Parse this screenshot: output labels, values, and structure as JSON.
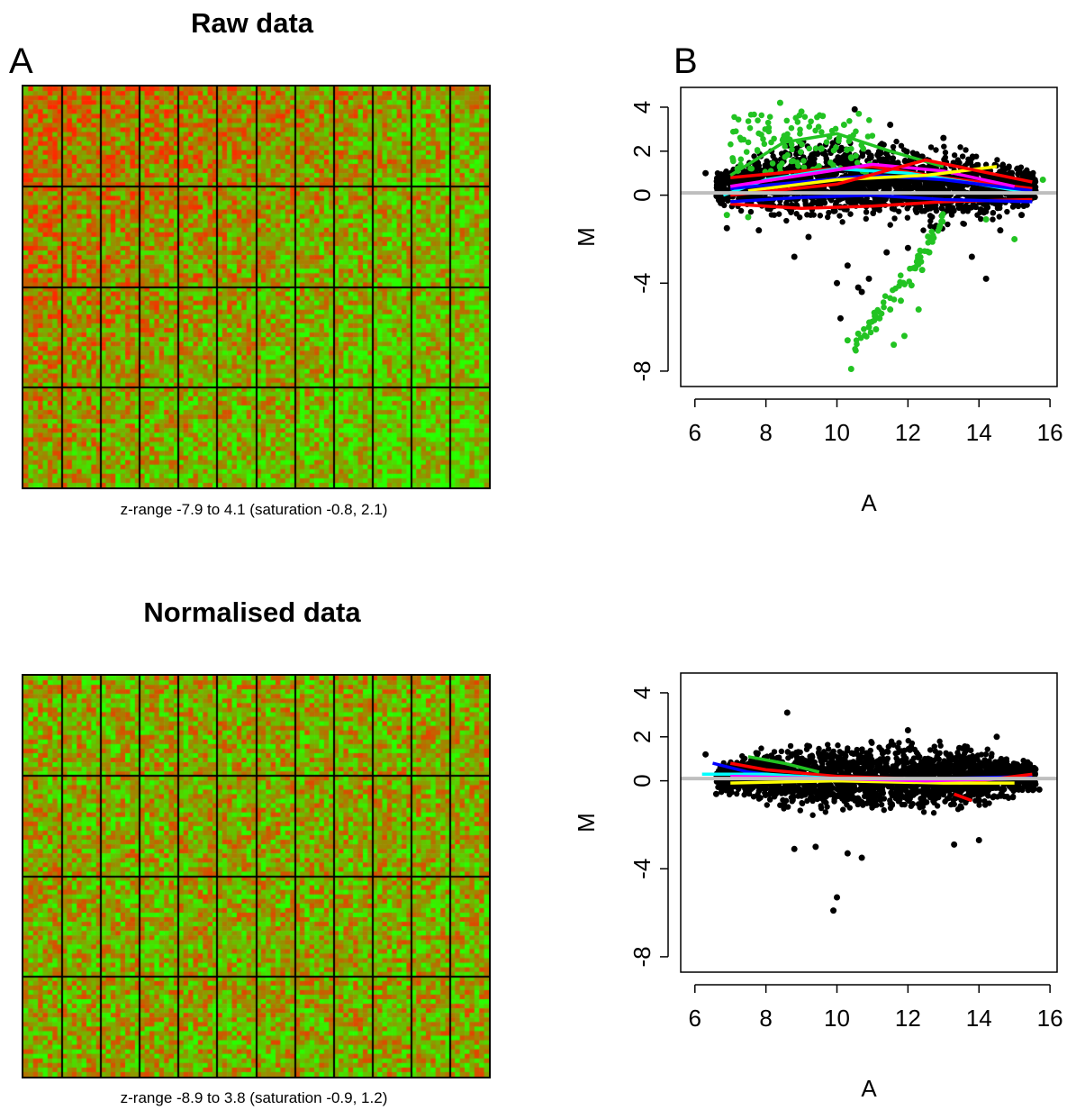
{
  "panel_labels": {
    "a": "A",
    "b": "B"
  },
  "colors": {
    "red": "#ff0000",
    "green": "#00ff00",
    "black": "#000000",
    "fit_line": "#bebebe"
  },
  "chart_data": [
    {
      "type": "heatmap",
      "title": "Raw data",
      "caption": "z-range -7.9 to 4.1 (saturation -0.8, 2.1)",
      "grid": {
        "block_rows": 4,
        "block_cols": 12
      },
      "z_range": [
        -7.9,
        4.1
      ],
      "saturation": [
        -0.8,
        2.1
      ],
      "colormap": [
        "green",
        "red"
      ]
    },
    {
      "type": "scatter",
      "title": "",
      "xlabel": "A",
      "ylabel": "M",
      "xlim": [
        5.6,
        16.2
      ],
      "ylim": [
        -8.7,
        4.9
      ],
      "xticks": [
        6,
        8,
        10,
        12,
        14,
        16
      ],
      "yticks": [
        -8,
        -4,
        0,
        2,
        4
      ],
      "xtick_labels": [
        "6",
        "8",
        "10",
        "12",
        "14",
        "16"
      ],
      "ytick_labels": [
        "-8",
        "-4",
        "0",
        "2",
        "4"
      ],
      "series": [
        {
          "color": "#000000",
          "points": [
            [
              8.8,
              -2.8
            ],
            [
              10.0,
              -4.0
            ],
            [
              10.1,
              -5.6
            ],
            [
              10.3,
              -3.2
            ],
            [
              10.6,
              -4.2
            ],
            [
              10.7,
              -4.4
            ],
            [
              10.9,
              -3.8
            ],
            [
              11.4,
              -2.6
            ],
            [
              13.8,
              -2.8
            ],
            [
              14.2,
              -3.8
            ],
            [
              6.3,
              1.0
            ],
            [
              10.5,
              3.9
            ],
            [
              6.9,
              -1.5
            ],
            [
              7.8,
              -1.6
            ],
            [
              9.2,
              -1.9
            ],
            [
              12.0,
              -2.4
            ],
            [
              14.6,
              -1.6
            ],
            [
              15.2,
              -0.9
            ],
            [
              13.0,
              2.6
            ],
            [
              11.5,
              3.2
            ]
          ]
        },
        {
          "color": "#22c322",
          "points": [
            [
              8.4,
              4.2
            ],
            [
              9.0,
              3.8
            ],
            [
              9.6,
              3.6
            ],
            [
              10.2,
              3.2
            ],
            [
              7.2,
              1.2
            ],
            [
              6.9,
              -0.9
            ],
            [
              7.5,
              -1.0
            ],
            [
              15.8,
              0.7
            ],
            [
              15.0,
              -2.0
            ],
            [
              14.2,
              -1.1
            ],
            [
              12.9,
              -1.4
            ],
            [
              12.6,
              -2.6
            ],
            [
              12.4,
              -3.4
            ],
            [
              12.1,
              -4.1
            ],
            [
              11.8,
              -4.8
            ],
            [
              11.5,
              -5.2
            ],
            [
              11.2,
              -5.6
            ],
            [
              10.9,
              -6.0
            ],
            [
              10.6,
              -6.3
            ],
            [
              10.3,
              -6.6
            ],
            [
              11.9,
              -6.4
            ],
            [
              11.6,
              -6.8
            ],
            [
              12.3,
              -5.2
            ],
            [
              10.4,
              -7.9
            ],
            [
              11.1,
              -6.1
            ]
          ]
        }
      ],
      "loess_lines": [
        {
          "color": "#ff0000",
          "points": [
            [
              7,
              0.8
            ],
            [
              9,
              1.1
            ],
            [
              11,
              1.3
            ],
            [
              13,
              0.8
            ],
            [
              15.5,
              0.3
            ]
          ]
        },
        {
          "color": "#ff0000",
          "points": [
            [
              7,
              -0.4
            ],
            [
              9,
              -0.6
            ],
            [
              11,
              -0.5
            ],
            [
              13,
              -0.3
            ],
            [
              15.5,
              -0.2
            ]
          ]
        },
        {
          "color": "#00ffff",
          "points": [
            [
              6.8,
              0.0
            ],
            [
              8,
              0.7
            ],
            [
              10,
              1.2
            ],
            [
              12,
              1.0
            ],
            [
              14,
              0.5
            ],
            [
              15.5,
              0.1
            ]
          ]
        },
        {
          "color": "#0000ff",
          "points": [
            [
              7,
              0.3
            ],
            [
              9,
              0.6
            ],
            [
              11,
              0.9
            ],
            [
              13,
              0.7
            ],
            [
              15.5,
              0.2
            ]
          ]
        },
        {
          "color": "#0000ff",
          "points": [
            [
              7,
              -0.3
            ],
            [
              9,
              -0.1
            ],
            [
              11,
              0.0
            ],
            [
              13,
              -0.2
            ],
            [
              15.5,
              -0.3
            ]
          ]
        },
        {
          "color": "#ff00ff",
          "points": [
            [
              7,
              0.4
            ],
            [
              9,
              0.9
            ],
            [
              11,
              1.4
            ],
            [
              13,
              1.1
            ],
            [
              15,
              0.4
            ]
          ]
        },
        {
          "color": "#ffff00",
          "points": [
            [
              7.5,
              0.2
            ],
            [
              10,
              0.7
            ],
            [
              12.5,
              0.9
            ],
            [
              14.5,
              1.3
            ]
          ]
        },
        {
          "color": "#22c322",
          "points": [
            [
              7,
              0.9
            ],
            [
              8.5,
              2.4
            ],
            [
              10,
              2.8
            ],
            [
              11.5,
              2.0
            ],
            [
              13,
              1.3
            ]
          ]
        },
        {
          "color": "#ff0000",
          "points": [
            [
              7,
              0.0
            ],
            [
              10,
              0.5
            ],
            [
              12.5,
              1.6
            ],
            [
              15.5,
              0.6
            ]
          ]
        }
      ],
      "reference_line": {
        "color": "#bebebe",
        "y": 0.1
      }
    },
    {
      "type": "heatmap",
      "title": "Normalised data",
      "caption": "z-range -8.9 to 3.8 (saturation -0.9, 1.2)",
      "grid": {
        "block_rows": 4,
        "block_cols": 12
      },
      "z_range": [
        -8.9,
        3.8
      ],
      "saturation": [
        -0.9,
        1.2
      ],
      "colormap": [
        "green",
        "red"
      ]
    },
    {
      "type": "scatter",
      "title": "",
      "xlabel": "A",
      "ylabel": "M",
      "xlim": [
        5.6,
        16.2
      ],
      "ylim": [
        -8.7,
        4.9
      ],
      "xticks": [
        6,
        8,
        10,
        12,
        14,
        16
      ],
      "yticks": [
        -8,
        -4,
        0,
        2,
        4
      ],
      "xtick_labels": [
        "6",
        "8",
        "10",
        "12",
        "14",
        "16"
      ],
      "ytick_labels": [
        "-8",
        "-4",
        "0",
        "2",
        "4"
      ],
      "series": [
        {
          "color": "#000000",
          "points": [
            [
              6.3,
              1.2
            ],
            [
              8.6,
              3.1
            ],
            [
              9.9,
              -5.9
            ],
            [
              10.0,
              -5.3
            ],
            [
              8.8,
              -3.1
            ],
            [
              9.4,
              -3.0
            ],
            [
              10.3,
              -3.3
            ],
            [
              10.7,
              -3.5
            ],
            [
              13.3,
              -2.9
            ],
            [
              14.0,
              -2.7
            ],
            [
              15.7,
              -0.4
            ],
            [
              14.5,
              2.0
            ],
            [
              12.0,
              2.3
            ],
            [
              6.6,
              -0.6
            ]
          ]
        }
      ],
      "loess_lines": [
        {
          "color": "#0000ff",
          "points": [
            [
              6.5,
              0.8
            ],
            [
              7.5,
              0.4
            ],
            [
              9,
              0.1
            ],
            [
              11,
              0.1
            ],
            [
              13,
              0.1
            ],
            [
              15.5,
              0.2
            ]
          ]
        },
        {
          "color": "#ff0000",
          "points": [
            [
              7,
              0.8
            ],
            [
              8,
              0.5
            ],
            [
              10,
              0.2
            ],
            [
              12,
              0.1
            ],
            [
              13.5,
              -0.1
            ],
            [
              15.5,
              0.3
            ]
          ]
        },
        {
          "color": "#00ffff",
          "points": [
            [
              6.2,
              0.3
            ],
            [
              8,
              0.3
            ],
            [
              10,
              0.1
            ],
            [
              12.5,
              0.0
            ],
            [
              15,
              0.1
            ]
          ]
        },
        {
          "color": "#22c322",
          "points": [
            [
              7.5,
              1.1
            ],
            [
              8.5,
              0.8
            ],
            [
              9.5,
              0.4
            ]
          ]
        },
        {
          "color": "#ff0000",
          "points": [
            [
              13.3,
              -0.6
            ],
            [
              13.8,
              -0.9
            ]
          ]
        },
        {
          "color": "#ffff00",
          "points": [
            [
              7,
              -0.1
            ],
            [
              10,
              0.0
            ],
            [
              13,
              -0.1
            ],
            [
              15,
              -0.1
            ]
          ]
        },
        {
          "color": "#ff00ff",
          "points": [
            [
              7,
              0.2
            ],
            [
              10,
              0.1
            ],
            [
              12.5,
              0.0
            ],
            [
              15,
              0.1
            ]
          ]
        }
      ],
      "reference_line": {
        "color": "#bebebe",
        "y": 0.1
      }
    }
  ]
}
